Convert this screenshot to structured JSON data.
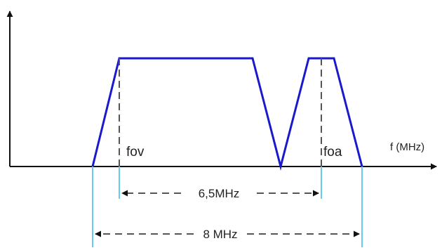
{
  "axis": {
    "x_label": "f (MHz)"
  },
  "markers": {
    "video_carrier": "fov",
    "audio_carrier": "foa"
  },
  "dimensions": {
    "carrier_spacing": "6,5MHz",
    "channel_width": "8 MHz"
  },
  "colors": {
    "spectrum": "#1a1acc",
    "guide": "#66ccee",
    "axis": "#111111",
    "dash": "#555555"
  }
}
